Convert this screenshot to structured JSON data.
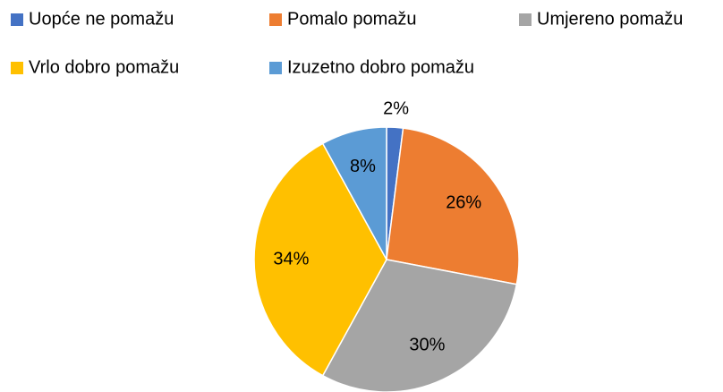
{
  "chart_data": {
    "type": "pie",
    "categories": [
      "Uopće ne pomažu",
      "Pomalo pomažu",
      "Umjereno pomažu",
      "Vrlo dobro pomažu",
      "Izuzetno dobro pomažu"
    ],
    "values": [
      2,
      26,
      30,
      34,
      8
    ],
    "value_labels": [
      "2%",
      "26%",
      "30%",
      "34%",
      "8%"
    ],
    "colors": [
      "#4472c4",
      "#ed7d31",
      "#a5a5a5",
      "#ffc000",
      "#5b9bd5"
    ],
    "legend": "top"
  }
}
